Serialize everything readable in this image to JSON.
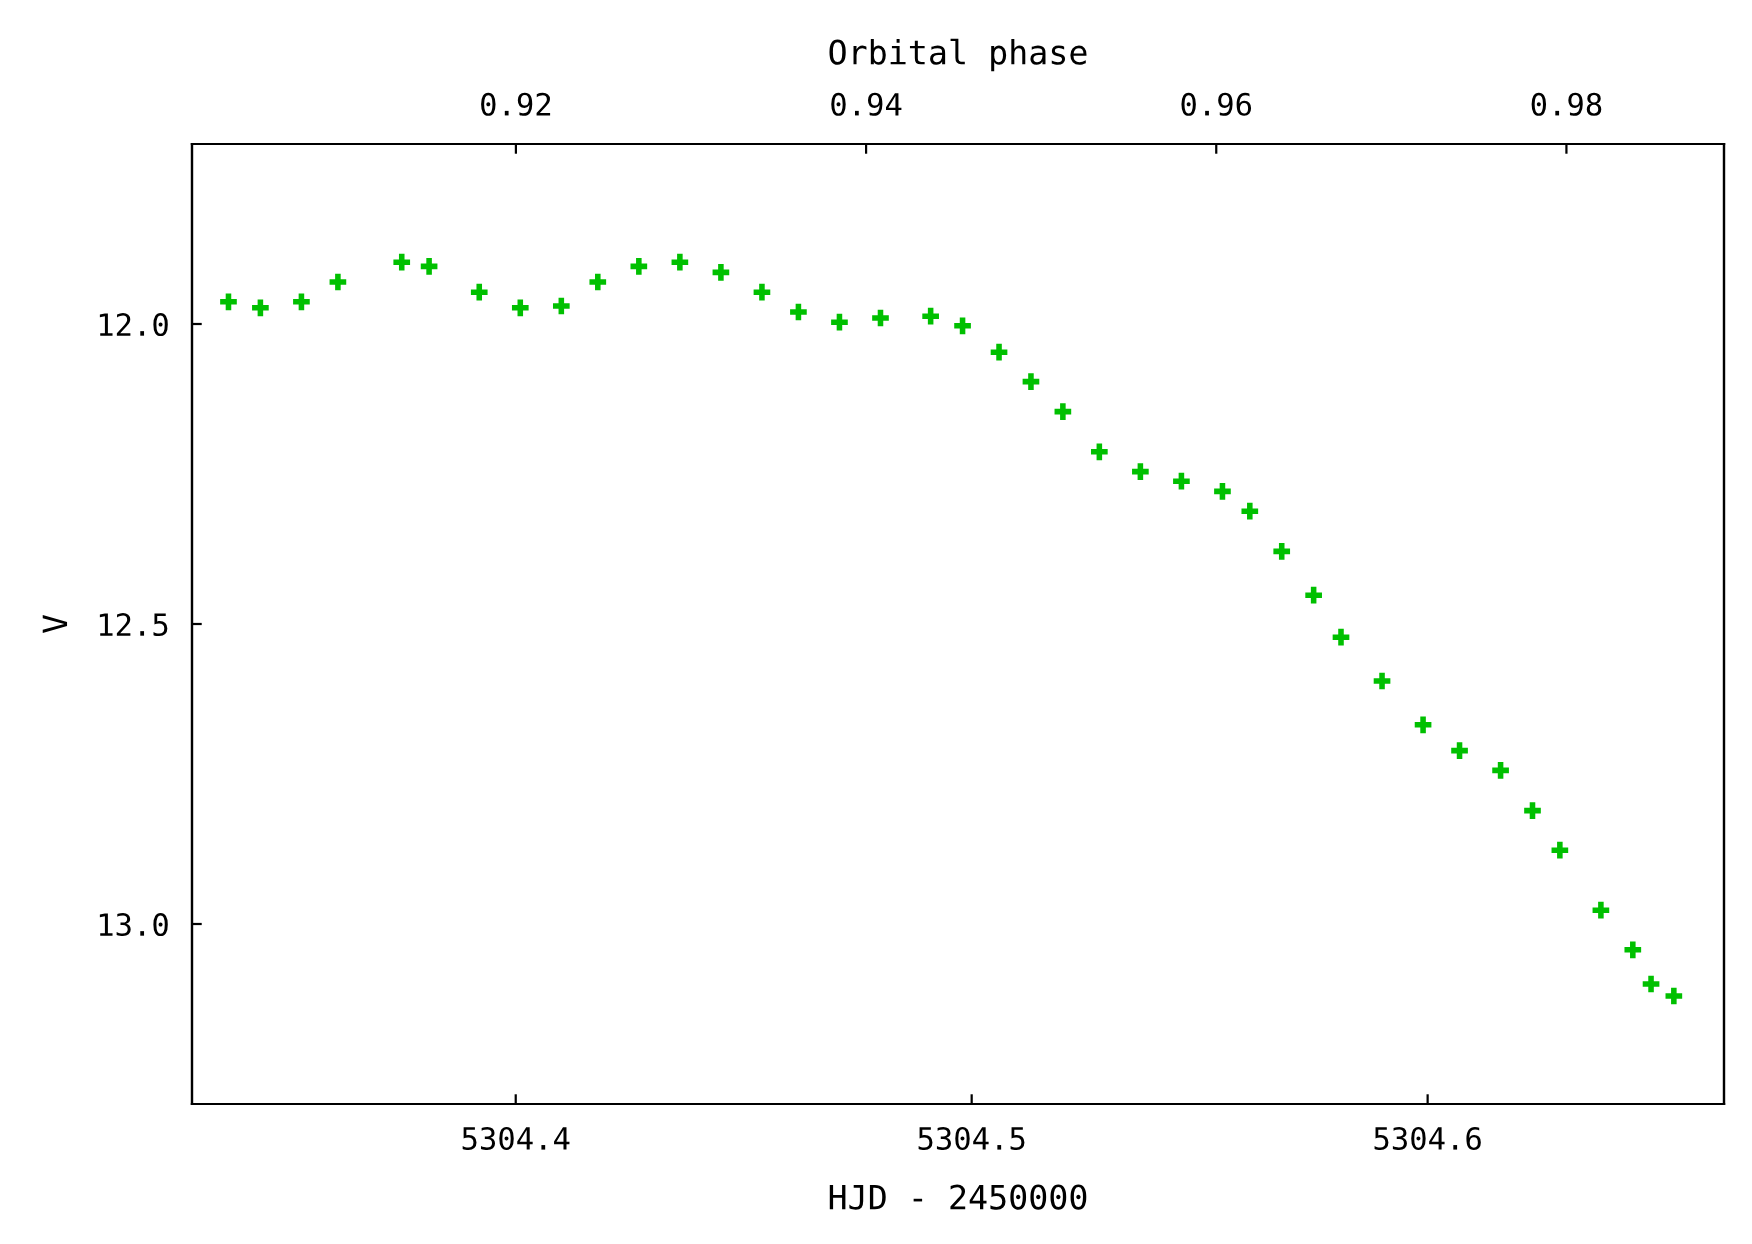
{
  "chart_data": {
    "type": "scatter",
    "xlabel": "HJD - 2450000",
    "ylabel": "V",
    "x2label": "Orbital phase",
    "x": [
      5304.337,
      5304.344,
      5304.353,
      5304.361,
      5304.375,
      5304.381,
      5304.392,
      5304.401,
      5304.41,
      5304.418,
      5304.427,
      5304.436,
      5304.445,
      5304.454,
      5304.462,
      5304.471,
      5304.48,
      5304.491,
      5304.498,
      5304.506,
      5304.513,
      5304.52,
      5304.528,
      5304.537,
      5304.546,
      5304.555,
      5304.561,
      5304.568,
      5304.575,
      5304.581,
      5304.59,
      5304.599,
      5304.607,
      5304.616,
      5304.623,
      5304.629,
      5304.638,
      5304.645,
      5304.649,
      5304.654
    ],
    "series": [
      {
        "color": "#00c000",
        "values": [
          11.963,
          11.973,
          11.963,
          11.93,
          11.897,
          11.904,
          11.947,
          11.973,
          11.97,
          11.93,
          11.904,
          11.897,
          11.914,
          11.947,
          11.98,
          11.997,
          11.99,
          11.987,
          12.003,
          12.047,
          12.096,
          12.146,
          12.213,
          12.246,
          12.262,
          12.279,
          12.312,
          12.379,
          12.452,
          12.522,
          12.595,
          12.668,
          12.711,
          12.744,
          12.811,
          12.877,
          12.977,
          13.043,
          13.1,
          13.12
        ]
      }
    ],
    "xlim": [
      5304.329,
      5304.665
    ],
    "xticks": [
      {
        "value": 5304.4,
        "label": "5304.4"
      },
      {
        "value": 5304.5,
        "label": "5304.5"
      },
      {
        "value": 5304.6,
        "label": "5304.6"
      }
    ],
    "x2lim": [
      0.9015,
      0.989
    ],
    "x2ticks": [
      0.92,
      0.94,
      0.96,
      0.98
    ],
    "ylim": [
      13.3,
      11.7
    ],
    "yticks": [
      {
        "value": 12.0,
        "label": "12.0"
      },
      {
        "value": 12.5,
        "label": "12.5"
      },
      {
        "value": 13.0,
        "label": "13.0"
      }
    ],
    "marker": "cross",
    "grid": false,
    "legend": false
  }
}
